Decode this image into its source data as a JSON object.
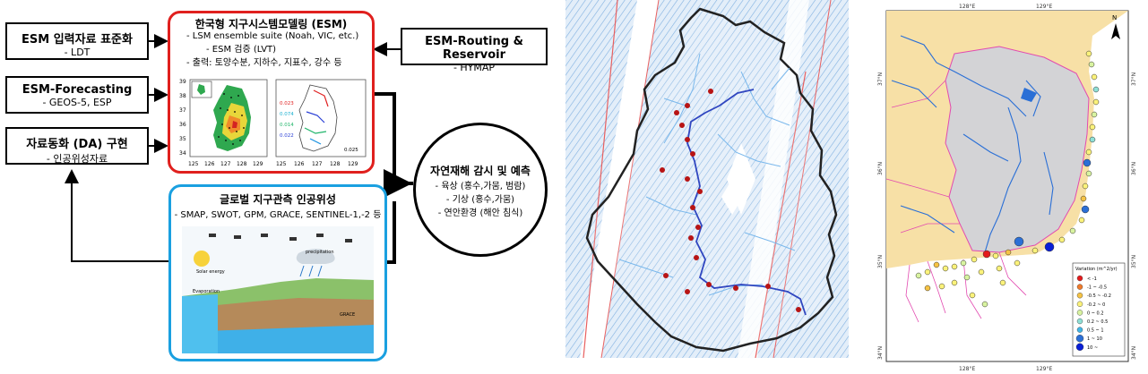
{
  "flow": {
    "esm_input": {
      "title": "ESM 입력자료 표준화",
      "sub": "- LDT"
    },
    "esm_forecasting": {
      "title": "ESM-Forecasting",
      "sub": "- GEOS-5, ESP"
    },
    "da": {
      "title": "자료동화 (DA) 구현",
      "sub": "-  인공위성자료"
    },
    "esm_routing": {
      "title": "ESM-Routing & Reservoir",
      "sub": "- HYMAP"
    },
    "korean_esm": {
      "title": "한국형 지구시스템모델링 (ESM)",
      "lines": [
        "-  LSM ensemble suite (Noah, VIC, etc.)",
        "-  ESM 검증 (LVT)",
        "-  출력: 토양수분, 지하수, 지표수, 강수 등"
      ],
      "map_left_yticks": [
        "39",
        "38",
        "37",
        "36",
        "35",
        "34"
      ],
      "map_left_xticks": [
        "125",
        "126",
        "127",
        "128",
        "129"
      ],
      "map_right_xticks": [
        "125",
        "126",
        "127",
        "128",
        "129"
      ],
      "map_right_values": [
        "0.023",
        "0.074",
        "0.014",
        "0.022",
        "0.025"
      ]
    },
    "satellite": {
      "title": "글로벌 지구관측 인공위성",
      "sub": "- SMAP, SWOT, GPM, GRACE, SENTINEL-1,-2 등",
      "labels": [
        "Solar energy",
        "precipitation",
        "Evaporation",
        "GRACE"
      ]
    },
    "hazard": {
      "title": "자연재해 감시 및 예측",
      "lines": [
        "- 육상 (홍수,가뭄, 범람)",
        "- 기상 (홍수,가뭄)",
        "- 연안환경 (해안 침식)"
      ]
    }
  },
  "right_map": {
    "top_ticks": [
      "128°E",
      "129°E"
    ],
    "bottom_ticks": [
      "128°E",
      "129°E"
    ],
    "left_ticks": [
      "37°N",
      "36°N",
      "35°N",
      "34°N"
    ],
    "right_ticks": [
      "37°N",
      "36°N",
      "35°N",
      "34°N"
    ],
    "north": "N",
    "legend_title": "Variation (m^2/yr)",
    "legend": [
      {
        "label": "< -1",
        "color": "#e41a1c"
      },
      {
        "label": "-1 ~ -0.5",
        "color": "#f07a2a"
      },
      {
        "label": "-0.5 ~ -0.2",
        "color": "#f6c344"
      },
      {
        "label": "-0.2 ~ 0",
        "color": "#fbf27a"
      },
      {
        "label": "0 ~ 0.2",
        "color": "#d8f3a0"
      },
      {
        "label": "0.2 ~ 0.5",
        "color": "#8fe0d6"
      },
      {
        "label": "0.5 ~ 1",
        "color": "#41b6e6"
      },
      {
        "label": "1 ~ 10",
        "color": "#2b6fd6"
      },
      {
        "label": "10 ~",
        "color": "#0a1fd6"
      }
    ]
  }
}
